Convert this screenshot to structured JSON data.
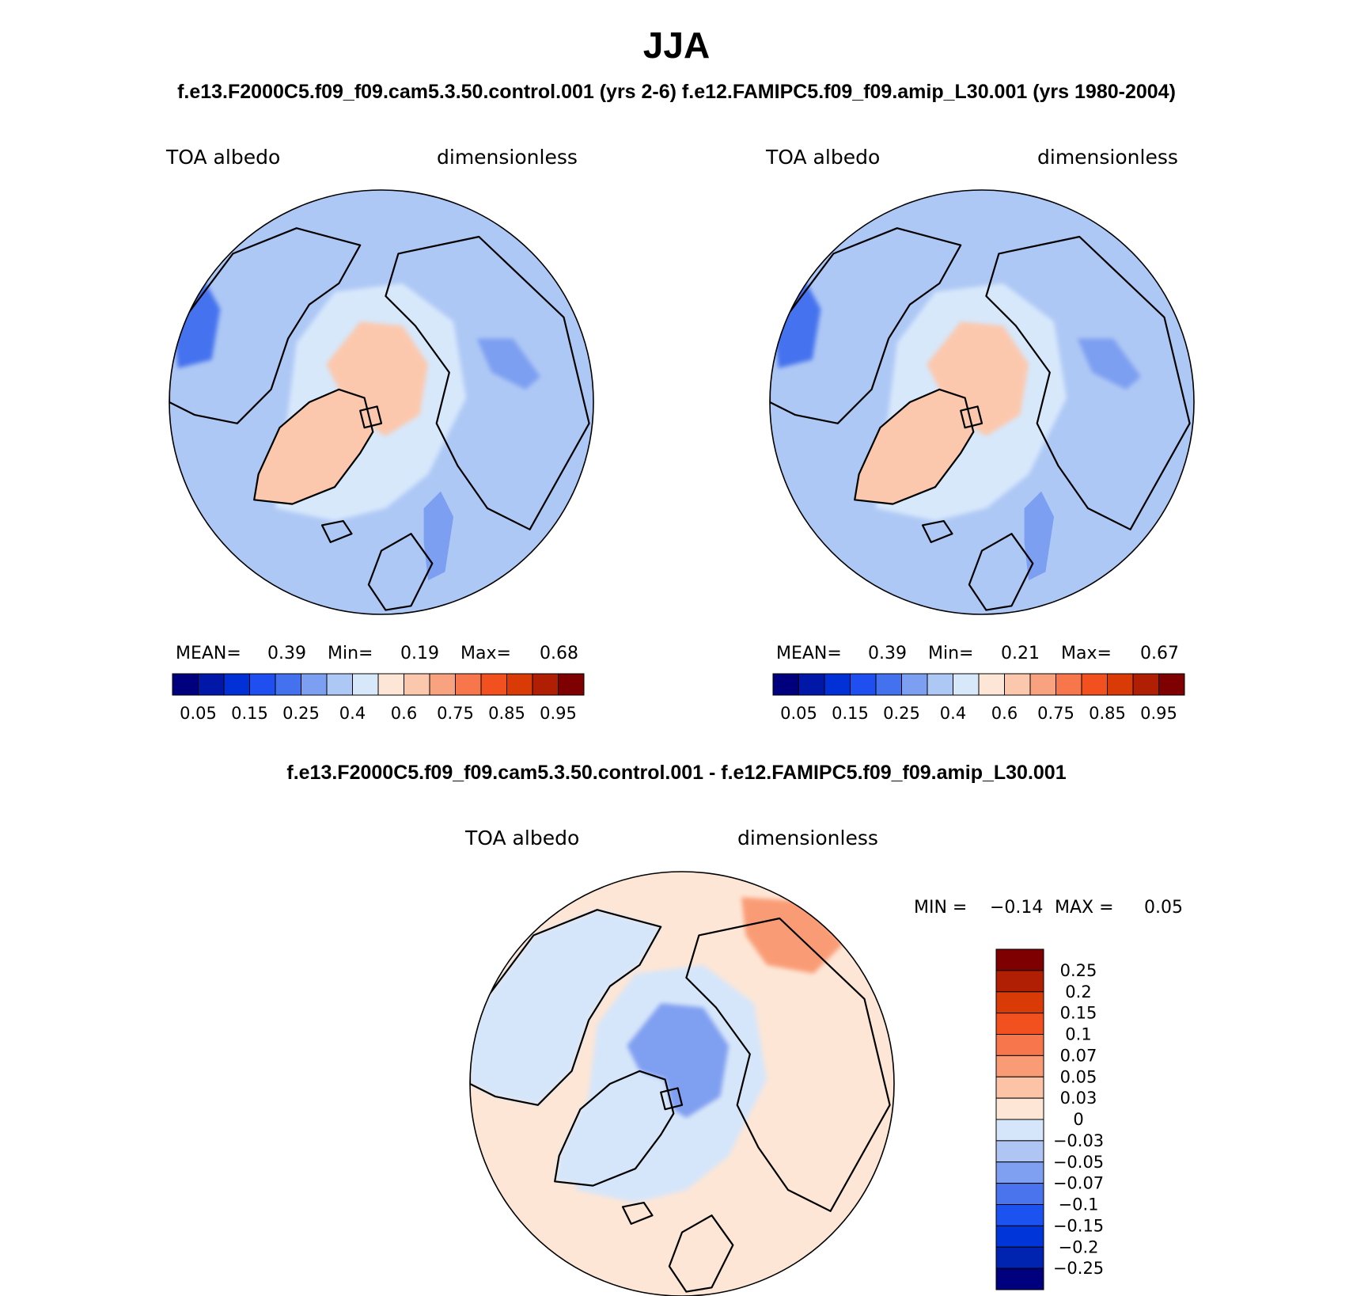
{
  "figure": {
    "title": "JJA",
    "subtitle_top": "f.e13.F2000C5.f09_f09.cam5.3.50.control.001 (yrs 2-6)  f.e12.FAMIPC5.f09_f09.amip_L30.001 (yrs 1980-2004)",
    "subtitle_diff": "f.e13.F2000C5.f09_f09.cam5.3.50.control.001 - f.e12.FAMIPC5.f09_f09.amip_L30.001"
  },
  "colors": {
    "abs_scale": [
      "#00007f",
      "#0017a8",
      "#0030d6",
      "#1f4ff0",
      "#4472ee",
      "#7d9ff1",
      "#aec8f5",
      "#d7e8fb",
      "#fde6d6",
      "#fcc8ad",
      "#f9a27f",
      "#f7764c",
      "#f2501f",
      "#d93a06",
      "#b01e04",
      "#7f0000"
    ],
    "diff_scale": [
      "#00007f",
      "#0024b0",
      "#0036d9",
      "#1b52f0",
      "#4a74ee",
      "#7f9ff1",
      "#afc6f5",
      "#d6e6fa",
      "#fde6d6",
      "#fcc3a6",
      "#f99c76",
      "#f7764c",
      "#f2501f",
      "#d93a06",
      "#b01e04",
      "#7f0000"
    ],
    "land_line": "#000000"
  },
  "chart_data": [
    {
      "type": "heatmap",
      "projection": "north-polar-stereographic",
      "label_left": "TOA albedo",
      "label_right": "dimensionless",
      "stats": {
        "mean_label": "MEAN=",
        "mean": "0.39",
        "min_label": "Min=",
        "min": "0.19",
        "max_label": "Max=",
        "max": "0.68"
      },
      "colorbar": {
        "orientation": "horizontal",
        "tick_labels": [
          "0.05",
          "0.15",
          "0.25",
          "0.4",
          "0.6",
          "0.75",
          "0.85",
          "0.95"
        ],
        "levels": [
          0.05,
          0.1,
          0.15,
          0.2,
          0.25,
          0.3,
          0.4,
          0.5,
          0.6,
          0.65,
          0.75,
          0.8,
          0.85,
          0.9,
          0.95
        ]
      },
      "regions": {
        "greenland": 0.62,
        "arctic_ocean": 0.6,
        "arctic_ring": 0.48,
        "midlat_ocean": 0.33,
        "labrador_sea": 0.22,
        "baltic": 0.27
      }
    },
    {
      "type": "heatmap",
      "projection": "north-polar-stereographic",
      "label_left": "TOA albedo",
      "label_right": "dimensionless",
      "stats": {
        "mean_label": "MEAN=",
        "mean": "0.39",
        "min_label": "Min=",
        "min": "0.21",
        "max_label": "Max=",
        "max": "0.67"
      },
      "colorbar": {
        "orientation": "horizontal",
        "tick_labels": [
          "0.05",
          "0.15",
          "0.25",
          "0.4",
          "0.6",
          "0.75",
          "0.85",
          "0.95"
        ],
        "levels": [
          0.05,
          0.1,
          0.15,
          0.2,
          0.25,
          0.3,
          0.4,
          0.5,
          0.6,
          0.65,
          0.75,
          0.8,
          0.85,
          0.9,
          0.95
        ]
      },
      "regions": {
        "greenland": 0.63,
        "arctic_ocean": 0.61,
        "arctic_ring": 0.47,
        "midlat_ocean": 0.33,
        "labrador_sea": 0.22,
        "baltic": 0.26
      }
    },
    {
      "type": "heatmap",
      "projection": "north-polar-stereographic",
      "label_left": "TOA albedo",
      "label_right": "dimensionless",
      "stats": {
        "min_label": "MIN =",
        "min": "−0.14",
        "max_label": "MAX =",
        "max": "0.05"
      },
      "colorbar": {
        "orientation": "vertical",
        "tick_labels": [
          "0.25",
          "0.2",
          "0.15",
          "0.1",
          "0.07",
          "0.05",
          "0.03",
          "0",
          "−0.03",
          "−0.05",
          "−0.07",
          "−0.1",
          "−0.15",
          "−0.2",
          "−0.25"
        ],
        "levels": [
          0.25,
          0.2,
          0.15,
          0.1,
          0.07,
          0.05,
          0.03,
          0,
          -0.03,
          -0.05,
          -0.07,
          -0.1,
          -0.15,
          -0.2,
          -0.25
        ]
      },
      "regions": {
        "background": 0.01,
        "north_america": -0.01,
        "arctic_center": -0.06,
        "greenland": -0.03,
        "siberia_patch": 0.05
      }
    }
  ]
}
